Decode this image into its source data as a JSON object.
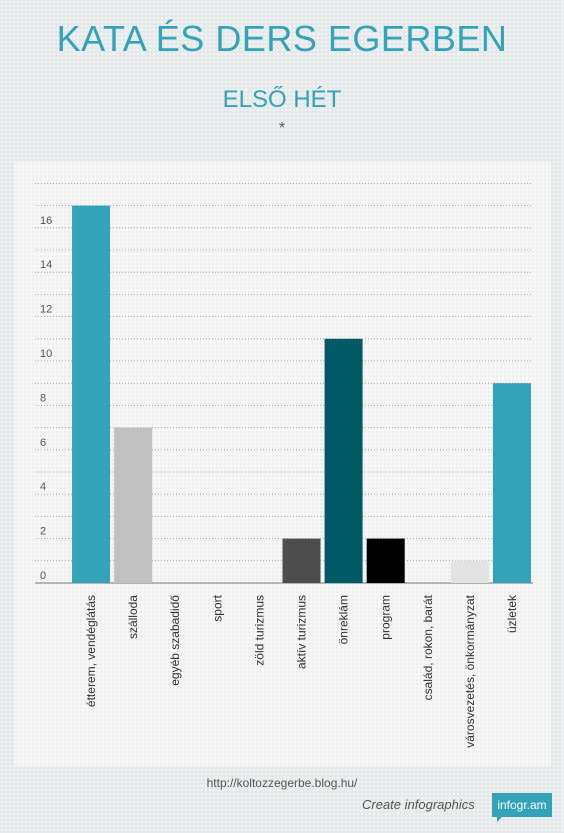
{
  "header": {
    "title": "KATA ÉS DERS EGERBEN",
    "subtitle": "ELSŐ HÉT",
    "asterisk": "*"
  },
  "footer": {
    "url": "http://koltozzegerbe.blog.hu/",
    "create_text": "Create infographics",
    "brand": "infogr.am"
  },
  "colors": {
    "accent": "#32a3b8"
  },
  "chart_data": {
    "type": "bar",
    "title": "",
    "xlabel": "",
    "ylabel": "",
    "ylim": [
      0,
      18
    ],
    "yticks": [
      0,
      2,
      4,
      6,
      8,
      10,
      12,
      14,
      16
    ],
    "grid": true,
    "categories": [
      "étterem, vendéglátás",
      "szálloda",
      "egyéb szabadidő",
      "sport",
      "zöld turizmus",
      "aktív turizmus",
      "önreklám",
      "program",
      "család, rokon, barát",
      "városvezetés, önkormányzat",
      "üzletek"
    ],
    "values": [
      17,
      7,
      0,
      0,
      0,
      2,
      11,
      2,
      0,
      1,
      9
    ],
    "bar_colors": [
      "#32a3b8",
      "#c0c0c0",
      "#32a3b8",
      "#32a3b8",
      "#32a3b8",
      "#4d4d4d",
      "#005a66",
      "#000000",
      "#32a3b8",
      "#e3e3e3",
      "#32a3b8"
    ]
  }
}
